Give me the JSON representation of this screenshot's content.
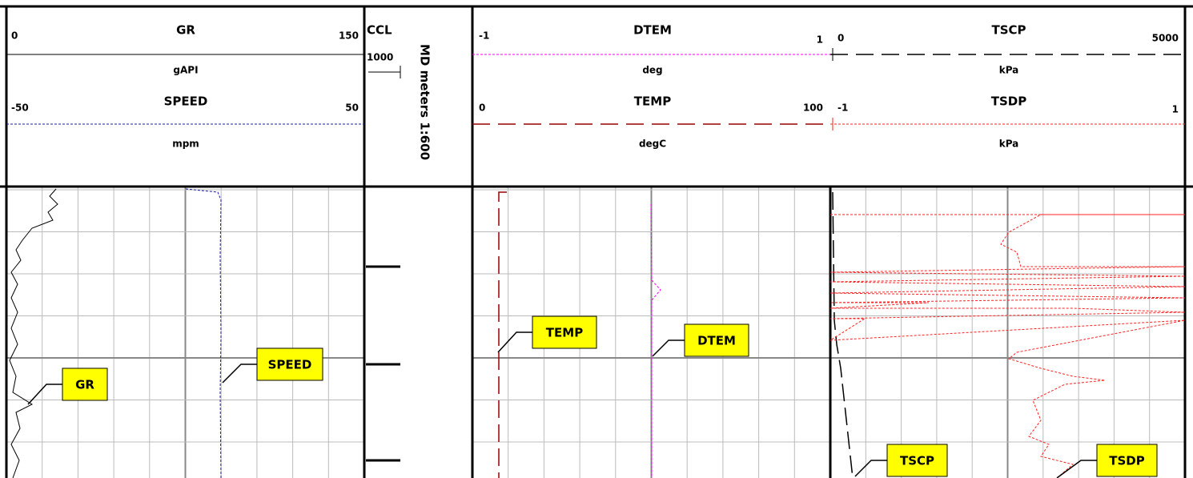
{
  "tracks": [
    {
      "curves": [
        {
          "name": "GR",
          "min": "0",
          "max": "150",
          "unit": "gAPI"
        },
        {
          "name": "SPEED",
          "min": "-50",
          "max": "50",
          "unit": "mpm"
        }
      ]
    },
    {
      "curves": [
        {
          "name": "CCL",
          "max": "1000"
        }
      ]
    },
    {
      "curves": [
        {
          "name": "DTEM",
          "min": "-1",
          "max": "1",
          "unit": "deg"
        },
        {
          "name": "TEMP",
          "min": "0",
          "max": "100",
          "unit": "degC"
        }
      ]
    },
    {
      "curves": [
        {
          "name": "TSCP",
          "min": "0",
          "max": "5000",
          "unit": "kPa"
        },
        {
          "name": "TSDP",
          "min": "-1",
          "max": "1",
          "unit": "kPa"
        }
      ]
    }
  ],
  "depth_label": "MD meters 1:600",
  "callouts": [
    "GR",
    "SPEED",
    "TEMP",
    "DTEM",
    "TSCP",
    "TSDP"
  ]
}
